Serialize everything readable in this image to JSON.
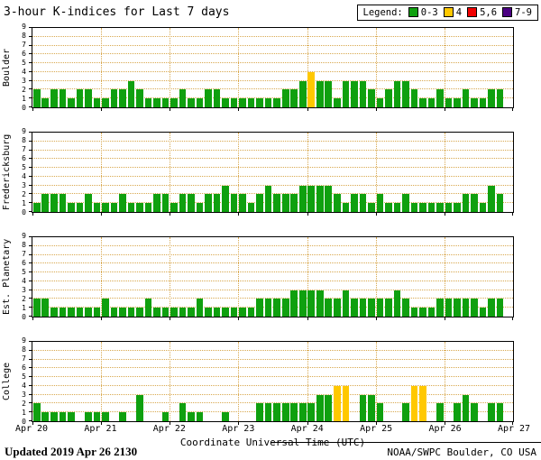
{
  "title": "3-hour K-indices for Last 7 days",
  "legend": {
    "label": "Legend:",
    "items": [
      {
        "label": "0-3",
        "color": "#0fa00f"
      },
      {
        "label": "4",
        "color": "#ffc800"
      },
      {
        "label": "5,6",
        "color": "#f00000"
      },
      {
        "label": "7-9",
        "color": "#4b0082"
      }
    ]
  },
  "footer": {
    "updated_label": "Updated",
    "updated_value": "2019 Apr 26 2130",
    "credit": "NOAA/SWPC Boulder, CO USA"
  },
  "chart_data": {
    "type": "bar",
    "title": "3-hour K-indices for Last 7 days",
    "xlabel": "Coordinate Universal Time (UTC)",
    "ylim": [
      0,
      9
    ],
    "yticks": [
      0,
      1,
      2,
      3,
      4,
      5,
      6,
      7,
      8,
      9
    ],
    "x_labels": [
      "Apr 20",
      "Apr 21",
      "Apr 22",
      "Apr 23",
      "Apr 24",
      "Apr 25",
      "Apr 26",
      "Apr 27"
    ],
    "bins_per_day": 8,
    "days": 7,
    "bin_hours": 3,
    "grid": "dotted",
    "color_scale": [
      {
        "max": 3,
        "color": "#0fa00f",
        "label": "0-3"
      },
      {
        "max": 4,
        "color": "#ffc800",
        "label": "4"
      },
      {
        "max": 6,
        "color": "#f00000",
        "label": "5,6"
      },
      {
        "max": 9,
        "color": "#4b0082",
        "label": "7-9"
      }
    ],
    "panels": [
      {
        "name": "Boulder",
        "values": [
          2,
          1,
          2,
          2,
          1,
          2,
          2,
          1,
          1,
          2,
          2,
          3,
          2,
          1,
          1,
          1,
          1,
          2,
          1,
          1,
          2,
          2,
          1,
          1,
          1,
          1,
          1,
          1,
          1,
          2,
          2,
          3,
          4,
          3,
          3,
          1,
          3,
          3,
          3,
          2,
          1,
          2,
          3,
          3,
          2,
          1,
          1,
          2,
          1,
          1,
          2,
          1,
          1,
          2,
          2
        ]
      },
      {
        "name": "Fredericksburg",
        "values": [
          1,
          2,
          2,
          2,
          1,
          1,
          2,
          1,
          1,
          1,
          2,
          1,
          1,
          1,
          2,
          2,
          1,
          2,
          2,
          1,
          2,
          2,
          3,
          2,
          2,
          1,
          2,
          3,
          2,
          2,
          2,
          3,
          3,
          3,
          3,
          2,
          1,
          2,
          2,
          1,
          2,
          1,
          1,
          2,
          1,
          1,
          1,
          1,
          1,
          1,
          2,
          2,
          1,
          3,
          2
        ]
      },
      {
        "name": "Est. Planetary",
        "values": [
          2,
          2,
          1,
          1,
          1,
          1,
          1,
          1,
          2,
          1,
          1,
          1,
          1,
          2,
          1,
          1,
          1,
          1,
          1,
          2,
          1,
          1,
          1,
          1,
          1,
          1,
          2,
          2,
          2,
          2,
          3,
          3,
          3,
          3,
          2,
          2,
          3,
          2,
          2,
          2,
          2,
          2,
          3,
          2,
          1,
          1,
          1,
          2,
          2,
          2,
          2,
          2,
          1,
          2,
          2
        ]
      },
      {
        "name": "College",
        "values": [
          2,
          1,
          1,
          1,
          1,
          0,
          1,
          1,
          1,
          0,
          1,
          0,
          3,
          0,
          0,
          1,
          0,
          2,
          1,
          1,
          0,
          0,
          1,
          0,
          0,
          0,
          2,
          2,
          2,
          2,
          2,
          2,
          2,
          3,
          3,
          4,
          4,
          0,
          3,
          3,
          2,
          0,
          0,
          2,
          4,
          4,
          0,
          2,
          0,
          2,
          3,
          2,
          0,
          2,
          2
        ]
      }
    ]
  }
}
